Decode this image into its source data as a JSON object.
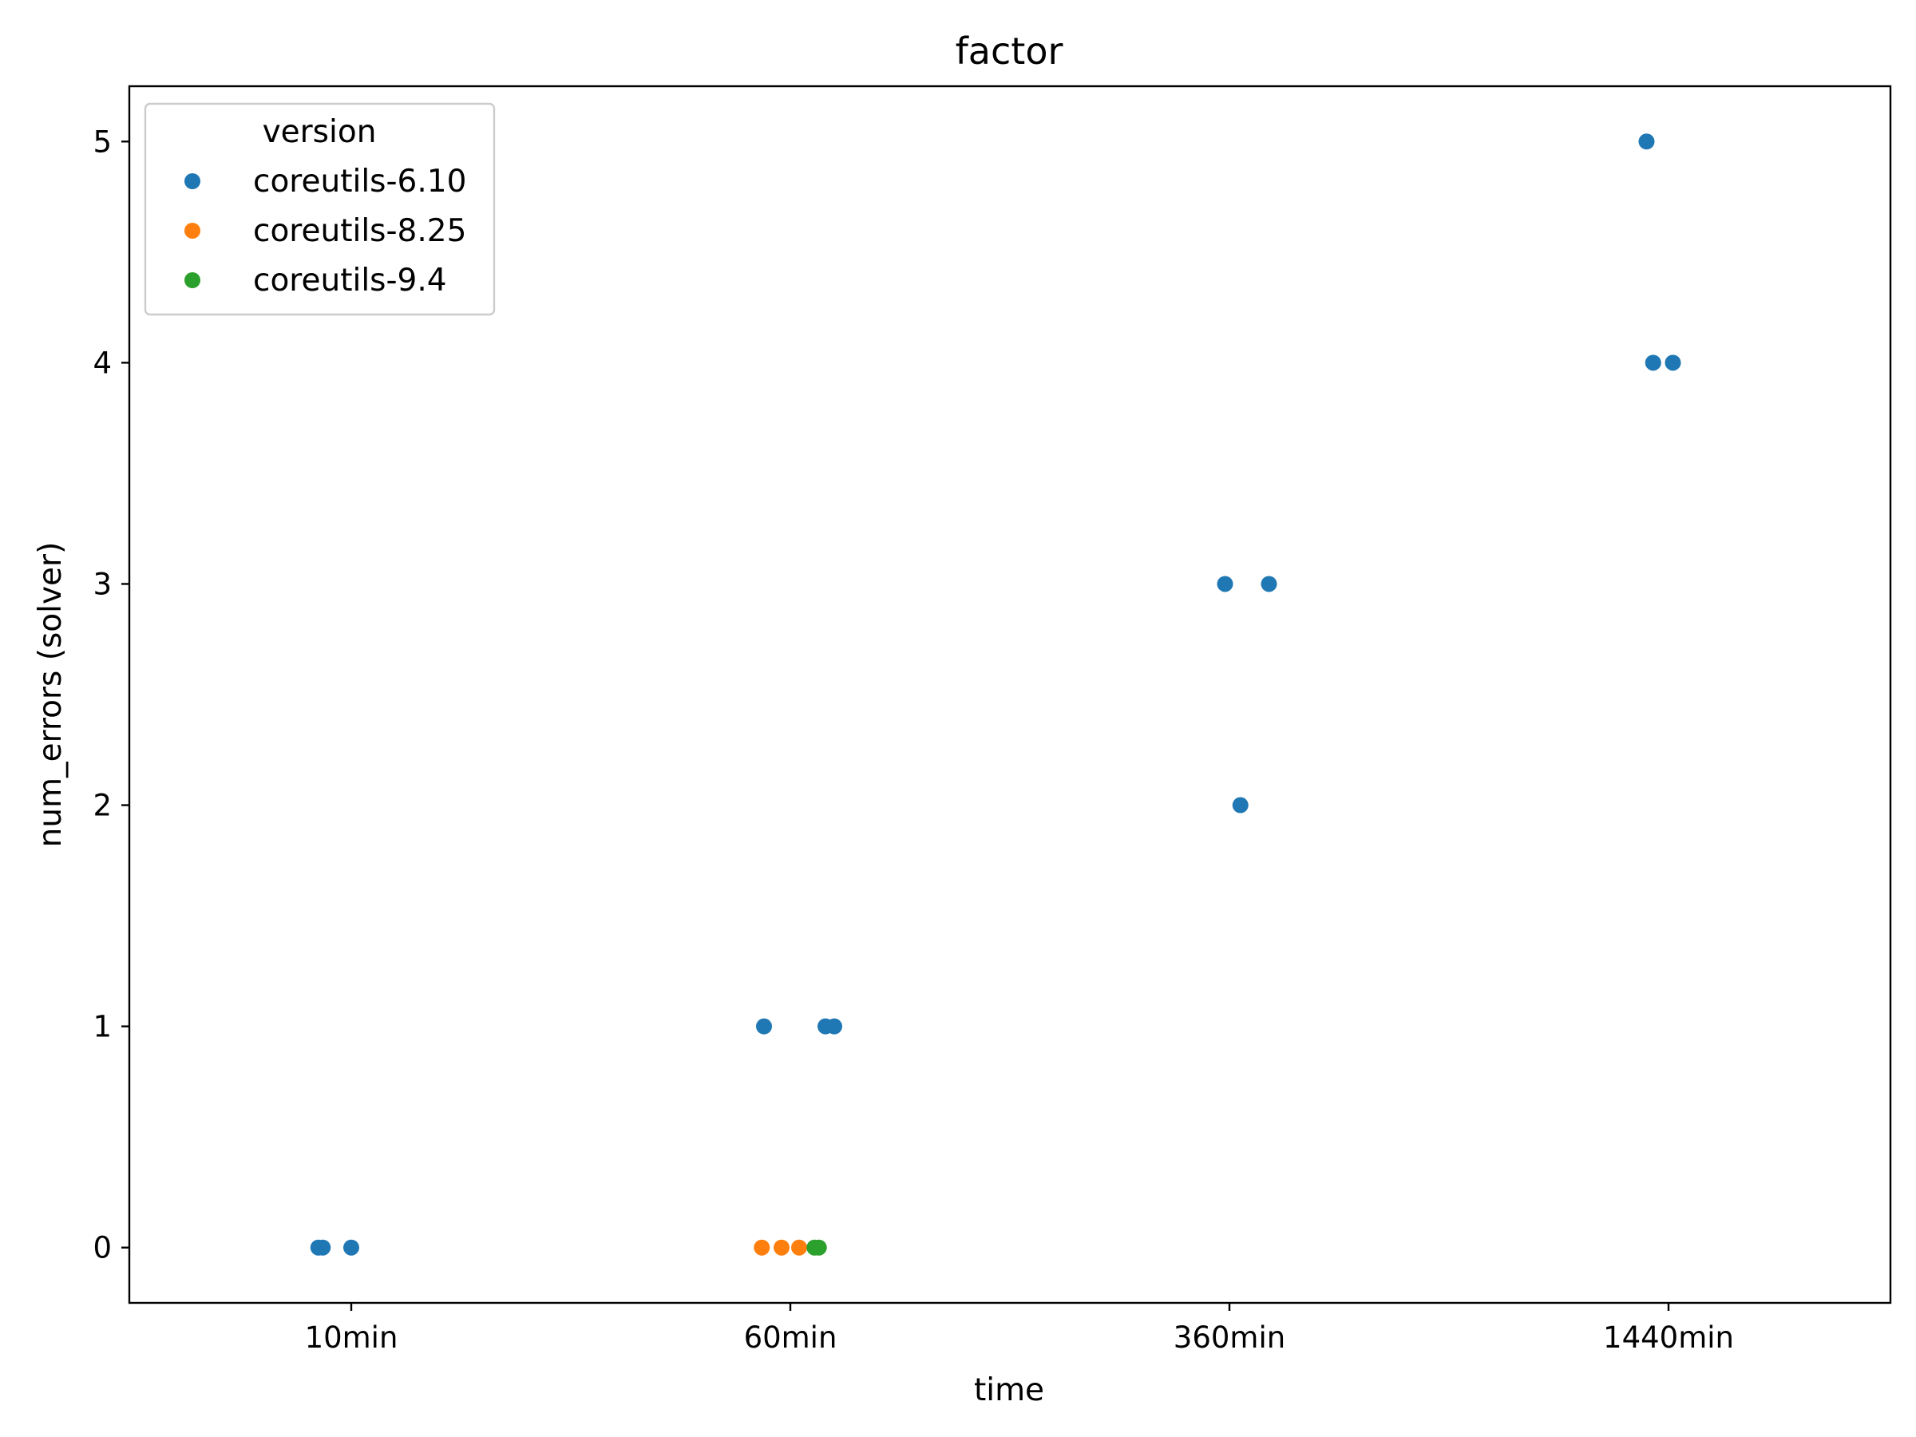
{
  "chart_data": {
    "type": "scatter",
    "title": "factor",
    "xlabel": "time",
    "ylabel": "num_errors (solver)",
    "categories": [
      "10min",
      "60min",
      "360min",
      "1440min"
    ],
    "yticks": [
      0,
      1,
      2,
      3,
      4,
      5
    ],
    "ylim": [
      -0.25,
      5.25
    ],
    "grid": false,
    "legend": {
      "title": "version",
      "placement": "top-left"
    },
    "series": [
      {
        "name": "coreutils-6.10",
        "color": "#1f77b4",
        "points": [
          {
            "x": "10min",
            "jitter": -0.075,
            "y": 0
          },
          {
            "x": "10min",
            "jitter": -0.065,
            "y": 0
          },
          {
            "x": "10min",
            "jitter": 0.0,
            "y": 0
          },
          {
            "x": "60min",
            "jitter": -0.06,
            "y": 1
          },
          {
            "x": "60min",
            "jitter": 0.08,
            "y": 1
          },
          {
            "x": "60min",
            "jitter": 0.1,
            "y": 1
          },
          {
            "x": "360min",
            "jitter": -0.01,
            "y": 3
          },
          {
            "x": "360min",
            "jitter": 0.09,
            "y": 3
          },
          {
            "x": "360min",
            "jitter": 0.025,
            "y": 2
          },
          {
            "x": "1440min",
            "jitter": -0.05,
            "y": 5
          },
          {
            "x": "1440min",
            "jitter": -0.035,
            "y": 4
          },
          {
            "x": "1440min",
            "jitter": 0.01,
            "y": 4
          }
        ]
      },
      {
        "name": "coreutils-8.25",
        "color": "#ff7f0e",
        "points": [
          {
            "x": "60min",
            "jitter": -0.065,
            "y": 0
          },
          {
            "x": "60min",
            "jitter": -0.02,
            "y": 0
          },
          {
            "x": "60min",
            "jitter": 0.02,
            "y": 0
          }
        ]
      },
      {
        "name": "coreutils-9.4",
        "color": "#2ca02c",
        "points": [
          {
            "x": "60min",
            "jitter": 0.055,
            "y": 0
          },
          {
            "x": "60min",
            "jitter": 0.065,
            "y": 0
          }
        ]
      }
    ]
  }
}
